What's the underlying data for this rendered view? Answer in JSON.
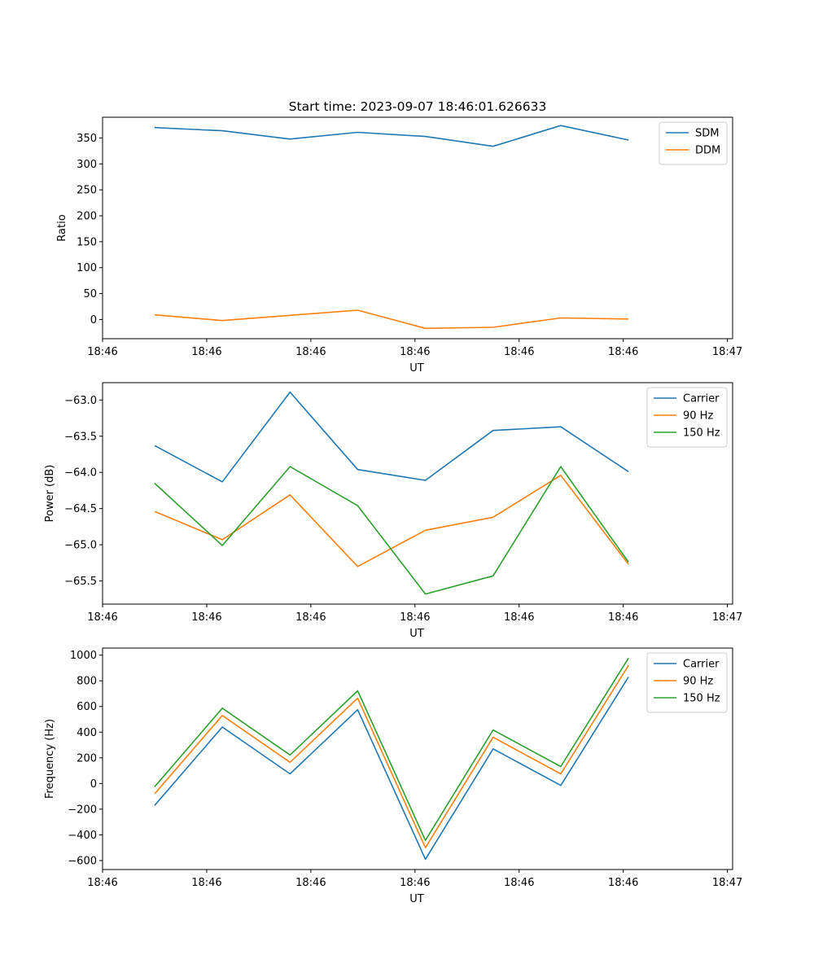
{
  "figure_title": "Start time: 2023-09-07 18:46:01.626633",
  "colors": {
    "blue": "#1f77b4",
    "orange": "#ff7f0e",
    "green": "#2ca02c"
  },
  "chart_data": [
    {
      "type": "line",
      "title": "Start time: 2023-09-07 18:46:01.626633",
      "xlabel": "UT",
      "ylabel": "Ratio",
      "x": [
        0.5,
        1.15,
        1.8,
        2.45,
        3.1,
        3.75,
        4.4,
        5.05
      ],
      "xlim": [
        0,
        6.05
      ],
      "xticks": [
        0.0,
        1.0,
        2.0,
        3.0,
        4.0,
        5.0,
        6.0
      ],
      "xtick_labels": [
        "18:46",
        "18:46",
        "18:46",
        "18:46",
        "18:46",
        "18:46",
        "18:47"
      ],
      "ylim": [
        -37,
        390
      ],
      "yticks": [
        0,
        50,
        100,
        150,
        200,
        250,
        300,
        350
      ],
      "ytick_labels": [
        "0",
        "50",
        "100",
        "150",
        "200",
        "250",
        "300",
        "350"
      ],
      "legend_position": "top-right",
      "series": [
        {
          "name": "SDM",
          "color": "#1f77b4",
          "values": [
            370,
            364,
            348,
            361,
            353,
            334,
            374,
            346
          ]
        },
        {
          "name": "DDM",
          "color": "#ff7f0e",
          "values": [
            9,
            -2,
            8,
            18,
            -17,
            -15,
            3,
            1
          ]
        }
      ]
    },
    {
      "type": "line",
      "title": "",
      "xlabel": "UT",
      "ylabel": "Power (dB)",
      "x": [
        0.5,
        1.15,
        1.8,
        2.45,
        3.1,
        3.75,
        4.4,
        5.05
      ],
      "xlim": [
        0,
        6.05
      ],
      "xticks": [
        0.0,
        1.0,
        2.0,
        3.0,
        4.0,
        5.0,
        6.0
      ],
      "xtick_labels": [
        "18:46",
        "18:46",
        "18:46",
        "18:46",
        "18:46",
        "18:46",
        "18:47"
      ],
      "ylim": [
        -65.82,
        -62.76
      ],
      "yticks": [
        -65.5,
        -65.0,
        -64.5,
        -64.0,
        -63.5,
        -63.0
      ],
      "ytick_labels": [
        "−65.5",
        "−65.0",
        "−64.5",
        "−64.0",
        "−63.5",
        "−63.0"
      ],
      "legend_position": "top-right",
      "series": [
        {
          "name": "Carrier",
          "color": "#1f77b4",
          "values": [
            -63.63,
            -64.13,
            -62.89,
            -63.96,
            -64.11,
            -63.42,
            -63.37,
            -63.99
          ]
        },
        {
          "name": "90 Hz",
          "color": "#ff7f0e",
          "values": [
            -64.54,
            -64.93,
            -64.31,
            -65.3,
            -64.8,
            -64.62,
            -64.04,
            -65.27
          ]
        },
        {
          "name": "150 Hz",
          "color": "#2ca02c",
          "values": [
            -64.15,
            -65.01,
            -63.92,
            -64.46,
            -65.68,
            -65.43,
            -63.92,
            -65.24
          ]
        }
      ]
    },
    {
      "type": "line",
      "title": "",
      "xlabel": "UT",
      "ylabel": "Frequency (Hz)",
      "x": [
        0.5,
        1.15,
        1.8,
        2.45,
        3.1,
        3.75,
        4.4,
        5.05
      ],
      "xlim": [
        0,
        6.05
      ],
      "xticks": [
        0.0,
        1.0,
        2.0,
        3.0,
        4.0,
        5.0,
        6.0
      ],
      "xtick_labels": [
        "18:46",
        "18:46",
        "18:46",
        "18:46",
        "18:46",
        "18:46",
        "18:47"
      ],
      "ylim": [
        -670,
        1055
      ],
      "yticks": [
        -600,
        -400,
        -200,
        0,
        200,
        400,
        600,
        800,
        1000
      ],
      "ytick_labels": [
        "−600",
        "−400",
        "−200",
        "0",
        "200",
        "400",
        "600",
        "800",
        "1000"
      ],
      "legend_position": "top-right",
      "series": [
        {
          "name": "Carrier",
          "color": "#1f77b4",
          "values": [
            -170,
            440,
            75,
            575,
            -590,
            270,
            -15,
            830
          ]
        },
        {
          "name": "90 Hz",
          "color": "#ff7f0e",
          "values": [
            -80,
            530,
            165,
            665,
            -500,
            360,
            75,
            920
          ]
        },
        {
          "name": "150 Hz",
          "color": "#2ca02c",
          "values": [
            -25,
            587,
            222,
            722,
            -443,
            417,
            132,
            977
          ]
        }
      ]
    }
  ]
}
